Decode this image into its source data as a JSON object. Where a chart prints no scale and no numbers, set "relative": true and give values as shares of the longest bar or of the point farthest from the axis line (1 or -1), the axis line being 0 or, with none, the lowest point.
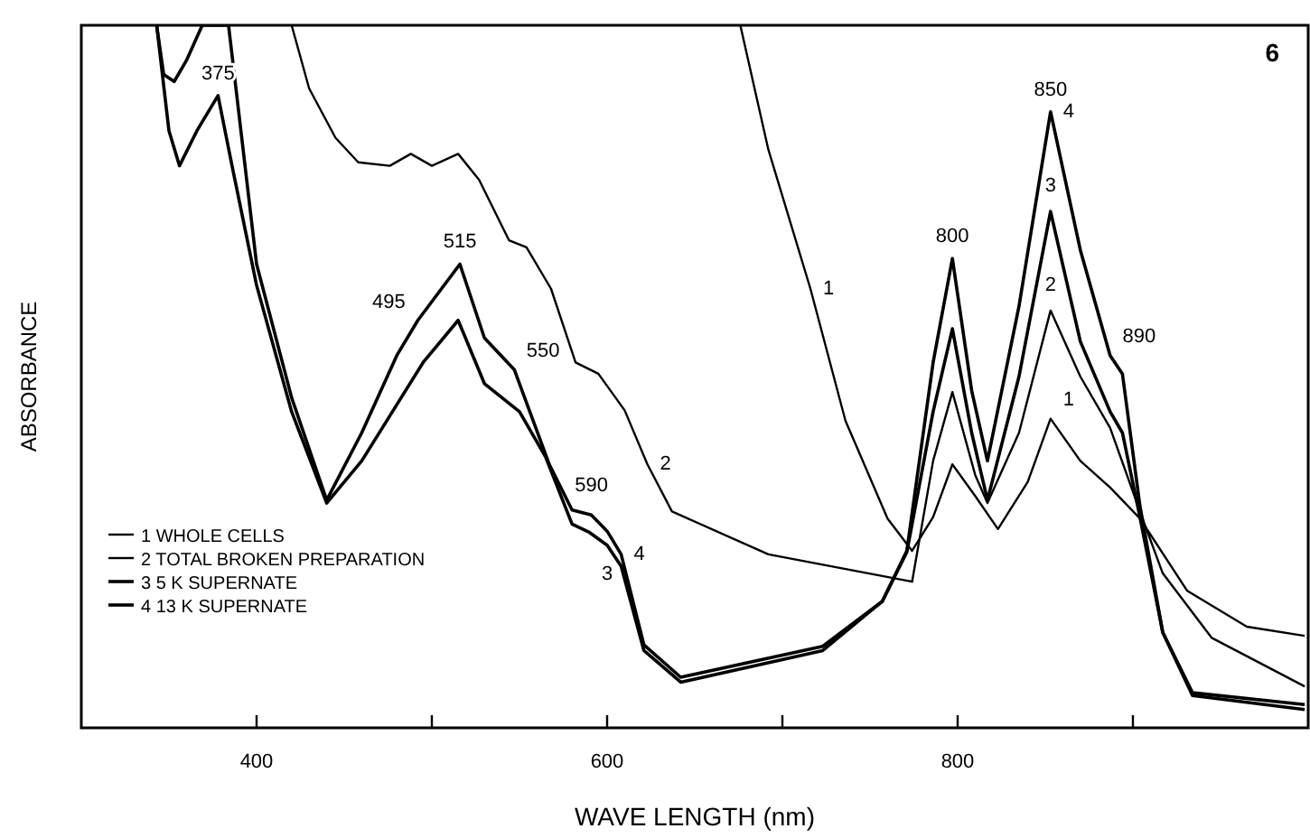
{
  "chart_data": {
    "type": "line",
    "relative": true,
    "xlabel": "WAVE LENGTH (nm)",
    "ylabel": "ABSORBANCE",
    "xlim": [
      300,
      1000
    ],
    "xticks": [
      400,
      {
        "value": 500,
        "label": null
      },
      600,
      {
        "value": 700,
        "label": null
      },
      800,
      {
        "value": 900,
        "label": null
      }
    ],
    "legend": "bottom left",
    "grid": false,
    "marker": "none",
    "line_style": "solid",
    "series": [
      {
        "name": "1 WHOLE CELLS",
        "color": "#000000",
        "x": [
          676,
          692,
          716,
          736,
          760,
          774,
          786,
          797,
          810,
          823,
          840,
          853,
          870,
          887,
          904,
          931,
          965,
          998
        ],
        "values": [
          1.0,
          0.823,
          0.625,
          0.437,
          0.298,
          0.252,
          0.3,
          0.375,
          0.33,
          0.283,
          0.35,
          0.44,
          0.38,
          0.342,
          0.298,
          0.195,
          0.144,
          0.131
        ]
      },
      {
        "name": "2 TOTAL BROKEN PREPARATION",
        "color": "#000000",
        "x": [
          420,
          430,
          445,
          458,
          476,
          488,
          500,
          515,
          527,
          544,
          554,
          568,
          582,
          595,
          610,
          623,
          637,
          692,
          774,
          786,
          797,
          810,
          817,
          835,
          853,
          870,
          887,
          904,
          917,
          945,
          998
        ],
        "values": [
          1.0,
          0.91,
          0.84,
          0.805,
          0.8,
          0.817,
          0.8,
          0.817,
          0.78,
          0.694,
          0.684,
          0.625,
          0.52,
          0.504,
          0.452,
          0.375,
          0.308,
          0.247,
          0.208,
          0.38,
          0.478,
          0.36,
          0.32,
          0.42,
          0.594,
          0.5,
          0.427,
          0.308,
          0.22,
          0.128,
          0.059
        ]
      },
      {
        "name": "3 5 K SUPERNATE",
        "color": "#000000",
        "x": [
          343,
          350,
          356,
          366,
          378,
          386,
          400,
          420,
          440,
          460,
          480,
          495,
          515,
          530,
          550,
          565,
          580,
          590,
          600,
          608,
          621,
          642,
          723,
          757,
          771,
          786,
          797,
          808,
          817,
          835,
          853,
          870,
          887,
          894,
          904,
          917,
          934,
          998
        ],
        "values": [
          1.0,
          0.85,
          0.8,
          0.85,
          0.9,
          0.8,
          0.63,
          0.45,
          0.32,
          0.38,
          0.46,
          0.52,
          0.58,
          0.49,
          0.45,
          0.385,
          0.29,
          0.278,
          0.26,
          0.23,
          0.11,
          0.065,
          0.11,
          0.18,
          0.25,
          0.45,
          0.568,
          0.42,
          0.324,
          0.5,
          0.735,
          0.55,
          0.45,
          0.42,
          0.3,
          0.136,
          0.05,
          0.033
        ]
      },
      {
        "name": "4 13 K SUPERNATE",
        "color": "#000000",
        "x": [
          343,
          347,
          353,
          360,
          369,
          384,
          400,
          420,
          440,
          460,
          480,
          492,
          516,
          530,
          547,
          567,
          580,
          591,
          600,
          608,
          621,
          642,
          723,
          757,
          771,
          786,
          797,
          808,
          817,
          835,
          853,
          870,
          887,
          894,
          904,
          917,
          934,
          998
        ],
        "values": [
          1.0,
          0.93,
          0.92,
          0.95,
          1.0,
          1.0,
          0.66,
          0.47,
          0.324,
          0.42,
          0.53,
          0.58,
          0.66,
          0.555,
          0.51,
          0.375,
          0.31,
          0.303,
          0.28,
          0.247,
          0.118,
          0.072,
          0.116,
          0.18,
          0.252,
          0.52,
          0.668,
          0.48,
          0.38,
          0.6,
          0.877,
          0.68,
          0.53,
          0.504,
          0.316,
          0.136,
          0.046,
          0.026
        ]
      }
    ],
    "annotations": [
      "6",
      {
        "text": "375",
        "x": 378,
        "y": 0.9
      },
      {
        "text": "495",
        "x": 492,
        "y": 0.58
      },
      {
        "text": "515",
        "x": 516,
        "y": 0.66
      },
      {
        "text": "550",
        "x": 547,
        "y": 0.51
      },
      {
        "text": "590",
        "x": 591,
        "y": 0.303
      },
      {
        "text": "800",
        "x": 797,
        "y": 0.668
      },
      {
        "text": "850",
        "x": 853,
        "y": 0.877
      },
      {
        "text": "890",
        "x": 887,
        "y": 0.53
      },
      {
        "text": "1",
        "x": 716,
        "y": 0.625
      },
      {
        "text": "1",
        "x": 853,
        "y": 0.44
      },
      {
        "text": "2",
        "x": 623,
        "y": 0.375
      },
      {
        "text": "2",
        "x": 853,
        "y": 0.594
      },
      {
        "text": "3",
        "x": 600,
        "y": 0.26
      },
      {
        "text": "3",
        "x": 853,
        "y": 0.735
      },
      {
        "text": "4",
        "x": 608,
        "y": 0.247
      },
      {
        "text": "4",
        "x": 853,
        "y": 0.877
      }
    ]
  }
}
